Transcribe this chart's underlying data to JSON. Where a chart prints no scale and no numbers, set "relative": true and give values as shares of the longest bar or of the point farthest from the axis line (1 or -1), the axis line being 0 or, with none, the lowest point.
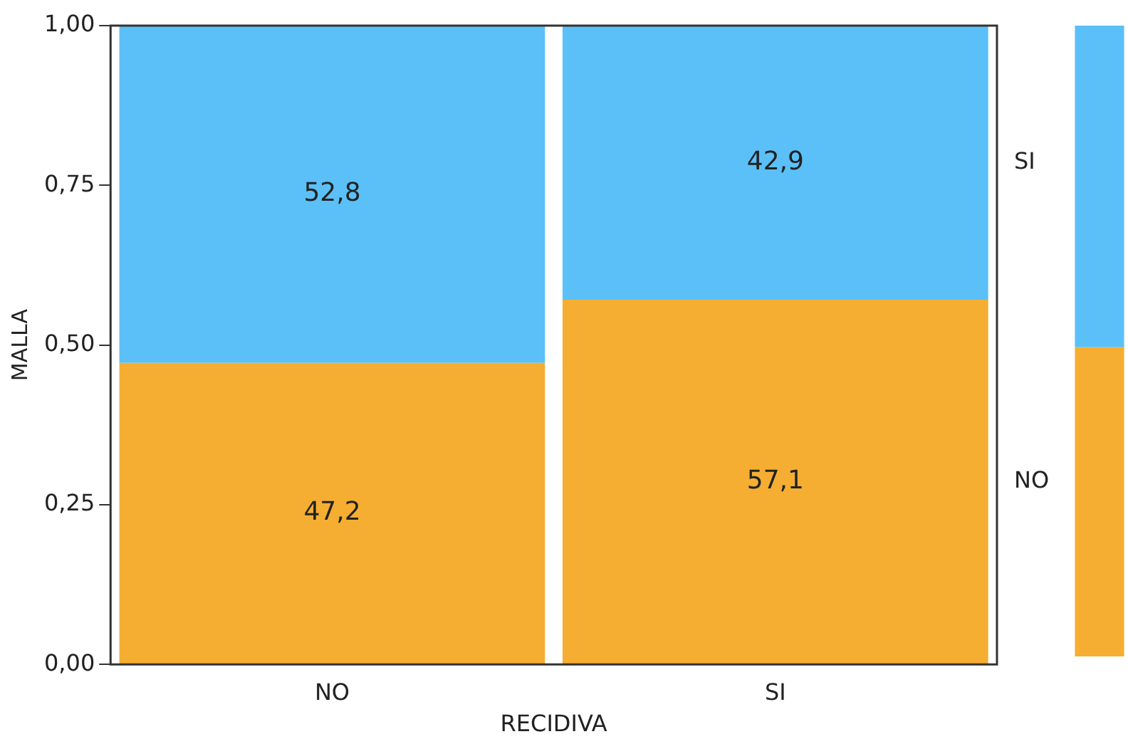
{
  "chart_data": [
    {
      "type": "bar",
      "stacked": true,
      "xlabel": "RECIDIVA",
      "ylabel": "MALLA",
      "categories": [
        "NO",
        "SI"
      ],
      "series": [
        {
          "name": "NO",
          "color": "#f5ae32",
          "values": [
            0.472,
            0.571
          ]
        },
        {
          "name": "SI",
          "color": "#5bc0f8",
          "values": [
            0.528,
            0.429
          ]
        }
      ],
      "annotations": [
        "47,2",
        "57,1",
        "52,8",
        "42,9"
      ],
      "ylim": [
        0,
        1
      ],
      "yticks": [
        {
          "value": 0,
          "label": "0,00"
        },
        {
          "value": 0.25,
          "label": "0,25"
        },
        {
          "value": 0.5,
          "label": "0,50"
        },
        {
          "value": 0.75,
          "label": "0,75"
        },
        {
          "value": 1,
          "label": "1,00"
        }
      ],
      "grid": false,
      "legend": false
    },
    {
      "type": "bar",
      "stacked": true,
      "relative": true,
      "categories": [
        null
      ],
      "series": [
        {
          "color": "#f5ae32",
          "values": [
            0.49
          ]
        },
        {
          "color": "#5bc0f8",
          "values": [
            0.51
          ]
        }
      ],
      "grid": false,
      "legend": false
    }
  ]
}
